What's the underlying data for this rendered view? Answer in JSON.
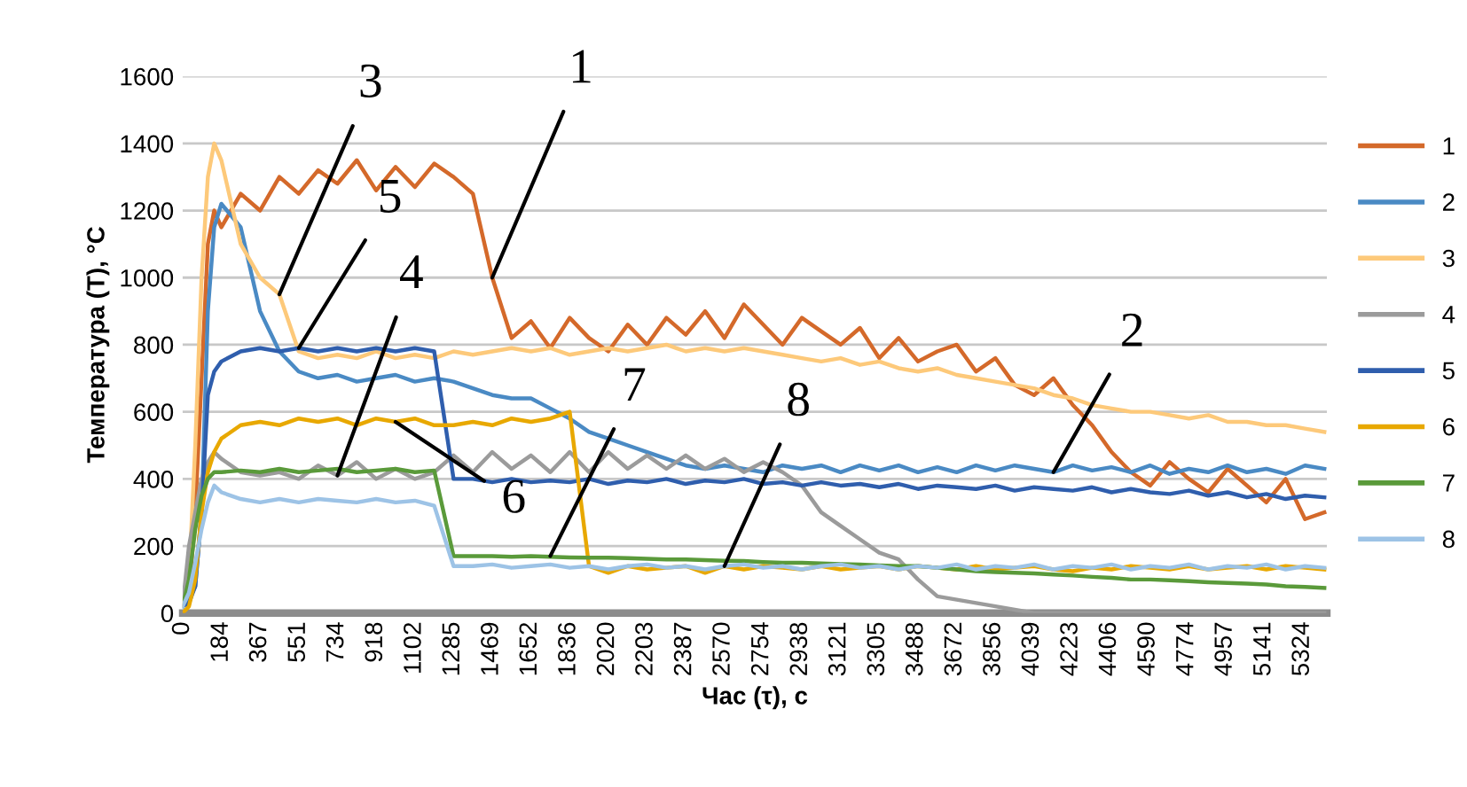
{
  "chart_data": {
    "type": "line",
    "xlabel": "Час (τ), с",
    "ylabel": "Температура (T), °C",
    "x": [
      0,
      30,
      60,
      90,
      120,
      150,
      184,
      276,
      368,
      460,
      552,
      644,
      736,
      828,
      920,
      1012,
      1104,
      1196,
      1288,
      1380,
      1472,
      1564,
      1656,
      1748,
      1840,
      1932,
      2024,
      2116,
      2208,
      2300,
      2392,
      2484,
      2576,
      2668,
      2760,
      2852,
      2944,
      3036,
      3128,
      3220,
      3312,
      3404,
      3496,
      3588,
      3680,
      3772,
      3864,
      3956,
      4048,
      4140,
      4232,
      4324,
      4416,
      4508,
      4600,
      4692,
      4784,
      4876,
      4968,
      5060,
      5152,
      5244,
      5336,
      5428
    ],
    "series": [
      {
        "name": "1",
        "color": "#d4692a",
        "values": [
          20,
          50,
          300,
          700,
          1100,
          1200,
          1150,
          1250,
          1200,
          1300,
          1250,
          1320,
          1280,
          1350,
          1260,
          1330,
          1270,
          1340,
          1300,
          1250,
          1000,
          820,
          870,
          790,
          880,
          820,
          780,
          860,
          800,
          880,
          830,
          900,
          820,
          920,
          860,
          800,
          880,
          840,
          800,
          850,
          760,
          820,
          750,
          780,
          800,
          720,
          760,
          680,
          650,
          700,
          620,
          560,
          480,
          420,
          380,
          450,
          400,
          360,
          430,
          380,
          330,
          400,
          280,
          300
        ]
      },
      {
        "name": "2",
        "color": "#4a8ac4",
        "values": [
          20,
          40,
          80,
          300,
          900,
          1150,
          1220,
          1150,
          900,
          780,
          720,
          700,
          710,
          690,
          700,
          710,
          690,
          700,
          690,
          670,
          650,
          640,
          640,
          610,
          580,
          540,
          520,
          500,
          480,
          460,
          440,
          430,
          440,
          430,
          420,
          440,
          430,
          440,
          420,
          440,
          425,
          440,
          420,
          435,
          420,
          440,
          425,
          440,
          430,
          420,
          440,
          425,
          435,
          420,
          440,
          415,
          430,
          420,
          440,
          420,
          430,
          415,
          440,
          430
        ]
      },
      {
        "name": "3",
        "color": "#fdc97a",
        "values": [
          20,
          100,
          500,
          1000,
          1300,
          1400,
          1350,
          1100,
          1000,
          950,
          780,
          760,
          770,
          760,
          780,
          760,
          770,
          760,
          780,
          770,
          780,
          790,
          780,
          790,
          770,
          780,
          790,
          780,
          790,
          800,
          780,
          790,
          780,
          790,
          780,
          770,
          760,
          750,
          760,
          740,
          750,
          730,
          720,
          730,
          710,
          700,
          690,
          680,
          670,
          650,
          640,
          620,
          610,
          600,
          600,
          590,
          580,
          590,
          570,
          570,
          560,
          560,
          550,
          540
        ]
      },
      {
        "name": "4",
        "color": "#9b9b9b",
        "values": [
          20,
          200,
          300,
          400,
          450,
          480,
          460,
          420,
          410,
          420,
          400,
          440,
          410,
          450,
          400,
          430,
          400,
          420,
          470,
          420,
          480,
          430,
          470,
          420,
          480,
          420,
          480,
          430,
          470,
          430,
          470,
          430,
          460,
          420,
          450,
          420,
          380,
          300,
          260,
          220,
          180,
          160,
          100,
          50,
          40,
          30,
          20,
          10,
          0,
          0,
          0,
          0,
          0,
          0,
          0,
          0,
          0,
          0,
          0,
          0,
          0,
          0,
          0,
          0
        ]
      },
      {
        "name": "5",
        "color": "#2f5ead",
        "values": [
          20,
          30,
          80,
          300,
          650,
          720,
          750,
          780,
          790,
          780,
          790,
          780,
          790,
          780,
          790,
          780,
          790,
          780,
          400,
          400,
          390,
          400,
          390,
          395,
          390,
          400,
          385,
          395,
          390,
          400,
          385,
          395,
          390,
          400,
          385,
          390,
          380,
          390,
          380,
          385,
          375,
          385,
          370,
          380,
          375,
          370,
          380,
          365,
          375,
          370,
          365,
          375,
          360,
          370,
          360,
          355,
          365,
          350,
          360,
          345,
          355,
          340,
          350,
          345
        ]
      },
      {
        "name": "6",
        "color": "#e8a800",
        "values": [
          0,
          20,
          100,
          300,
          420,
          480,
          520,
          560,
          570,
          560,
          580,
          570,
          580,
          560,
          580,
          570,
          580,
          560,
          560,
          570,
          560,
          580,
          570,
          580,
          600,
          140,
          120,
          140,
          130,
          135,
          140,
          120,
          140,
          130,
          140,
          135,
          130,
          140,
          130,
          135,
          140,
          130,
          140,
          135,
          130,
          140,
          130,
          135,
          140,
          130,
          125,
          135,
          130,
          140,
          135,
          130,
          140,
          130,
          135,
          140,
          130,
          140,
          135,
          130
        ]
      },
      {
        "name": "7",
        "color": "#5a9a3a",
        "values": [
          20,
          100,
          250,
          350,
          400,
          420,
          420,
          425,
          420,
          430,
          420,
          425,
          430,
          420,
          425,
          430,
          420,
          425,
          170,
          170,
          170,
          168,
          170,
          168,
          166,
          165,
          165,
          164,
          162,
          160,
          160,
          158,
          156,
          155,
          152,
          150,
          150,
          148,
          146,
          145,
          142,
          140,
          140,
          135,
          130,
          125,
          122,
          120,
          118,
          115,
          112,
          108,
          105,
          100,
          100,
          98,
          95,
          92,
          90,
          88,
          85,
          80,
          78,
          75
        ]
      },
      {
        "name": "8",
        "color": "#9dc3e6",
        "values": [
          20,
          60,
          150,
          250,
          330,
          380,
          360,
          340,
          330,
          340,
          330,
          340,
          335,
          330,
          340,
          330,
          335,
          320,
          140,
          140,
          145,
          135,
          140,
          145,
          135,
          140,
          130,
          140,
          145,
          135,
          140,
          130,
          140,
          145,
          135,
          140,
          130,
          140,
          145,
          135,
          140,
          130,
          140,
          135,
          145,
          130,
          140,
          135,
          145,
          130,
          140,
          135,
          145,
          130,
          140,
          135,
          145,
          130,
          140,
          135,
          145,
          130,
          140,
          135
        ]
      }
    ],
    "xlim": [
      0,
      5440
    ],
    "ylim": [
      0,
      1600
    ],
    "yticks": [
      0,
      200,
      400,
      600,
      800,
      1000,
      1200,
      1400,
      1600
    ],
    "xticks": [
      0,
      184,
      367,
      551,
      734,
      918,
      1102,
      1285,
      1469,
      1652,
      1836,
      2020,
      2203,
      2387,
      2570,
      2754,
      2938,
      3121,
      3305,
      3488,
      3672,
      3856,
      4039,
      4223,
      4406,
      4590,
      4774,
      4957,
      5141,
      5324
    ],
    "grid": "y",
    "legend": "right",
    "annotations": [
      {
        "text": "1",
        "x": 1472,
        "y": 1000
      },
      {
        "text": "3",
        "x": 460,
        "y": 950
      },
      {
        "text": "5",
        "x": 552,
        "y": 790
      },
      {
        "text": "4",
        "x": 736,
        "y": 410
      },
      {
        "text": "6",
        "x": 1012,
        "y": 570
      },
      {
        "text": "7",
        "x": 1748,
        "y": 170
      },
      {
        "text": "8",
        "x": 2576,
        "y": 140
      },
      {
        "text": "2",
        "x": 4140,
        "y": 420
      }
    ]
  }
}
